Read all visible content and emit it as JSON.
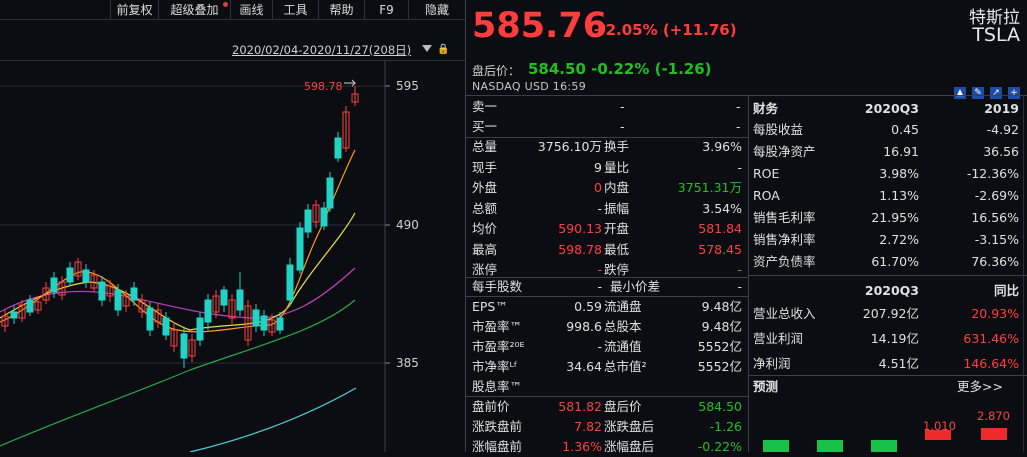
{
  "toolbar": {
    "items": [
      "前复权",
      "超级叠加",
      "画线",
      "工具",
      "帮助",
      "F9",
      "隐藏"
    ]
  },
  "chart": {
    "range": "2020/02/04-2020/11/27(208日)",
    "yticks": [
      "595",
      "490",
      "385"
    ],
    "high_label": "598.78"
  },
  "quote": {
    "price": "585.76",
    "change": "+2.05% (+11.76)",
    "name_zh": "特斯拉",
    "ticker": "TSLA",
    "after_label": "盘后价：",
    "after_value": "584.50 -0.22% (-1.26)",
    "exchange": "NASDAQ  USD  16:59"
  },
  "book": [
    [
      "卖一",
      "-",
      "-"
    ],
    [
      "买一",
      "-",
      "-"
    ]
  ],
  "stats": [
    [
      "总量",
      "3756.10万",
      "white",
      "换手",
      "3.96%",
      "white"
    ],
    [
      "现手",
      "9",
      "white",
      "量比",
      "-",
      "white"
    ],
    [
      "外盘",
      "0",
      "red",
      "内盘",
      "3751.31万",
      "green"
    ],
    [
      "总额",
      "-",
      "white",
      "振幅",
      "3.54%",
      "white"
    ],
    [
      "均价",
      "590.13",
      "red",
      "开盘",
      "581.84",
      "red"
    ],
    [
      "最高",
      "598.78",
      "red",
      "最低",
      "578.45",
      "red"
    ],
    [
      "涨停",
      "-",
      "red",
      "跌停",
      "-",
      "green"
    ]
  ],
  "shares_header": [
    "每手股数",
    "-",
    "最小价差",
    "-"
  ],
  "ratios": [
    [
      "EPS™",
      "0.59",
      "流通盘",
      "9.48亿"
    ],
    [
      "市盈率™",
      "998.6",
      "总股本",
      "9.48亿"
    ],
    [
      "市盈率²⁰ᴱ",
      "-",
      "流通值",
      "5552亿"
    ],
    [
      "市净率ᴸᶠ",
      "34.64",
      "总市值²",
      "5552亿"
    ],
    [
      "股息率™",
      "",
      "",
      " "
    ]
  ],
  "pre_post": [
    [
      "盘前价",
      "581.82",
      "red",
      "盘后价",
      "584.50",
      "green"
    ],
    [
      "涨跌盘前",
      "7.82",
      "red",
      "涨跌盘后",
      "-1.26",
      "green"
    ],
    [
      "涨幅盘前",
      "1.36%",
      "red",
      "涨幅盘后",
      "-0.22%",
      "green"
    ]
  ],
  "fin": {
    "header": [
      "财务",
      "2020Q3",
      "2019"
    ],
    "rows": [
      [
        "每股收益",
        "0.45",
        "white",
        "-4.92",
        "white"
      ],
      [
        "每股净资产",
        "16.91",
        "white",
        "36.56",
        "white"
      ],
      [
        "ROE",
        "3.98%",
        "white",
        "-12.36%",
        "white"
      ],
      [
        "ROA",
        "1.13%",
        "white",
        "-2.69%",
        "white"
      ],
      [
        "销售毛利率",
        "21.95%",
        "white",
        "16.56%",
        "white"
      ],
      [
        "销售净利率",
        "2.72%",
        "white",
        "-3.15%",
        "white"
      ],
      [
        "资产负债率",
        "61.70%",
        "white",
        "76.36%",
        "white"
      ]
    ],
    "header2": [
      "2020Q3",
      "同比"
    ],
    "rows2": [
      [
        "营业总收入",
        "207.92亿",
        "white",
        "20.93%",
        "red"
      ],
      [
        "营业利润",
        "14.19亿",
        "white",
        "631.46%",
        "red"
      ],
      [
        "净利润",
        "4.51亿",
        "white",
        "146.64%",
        "red"
      ]
    ],
    "forecast": "预测",
    "more": "更多>>",
    "f1": "1.010",
    "f2": "2.870"
  }
}
